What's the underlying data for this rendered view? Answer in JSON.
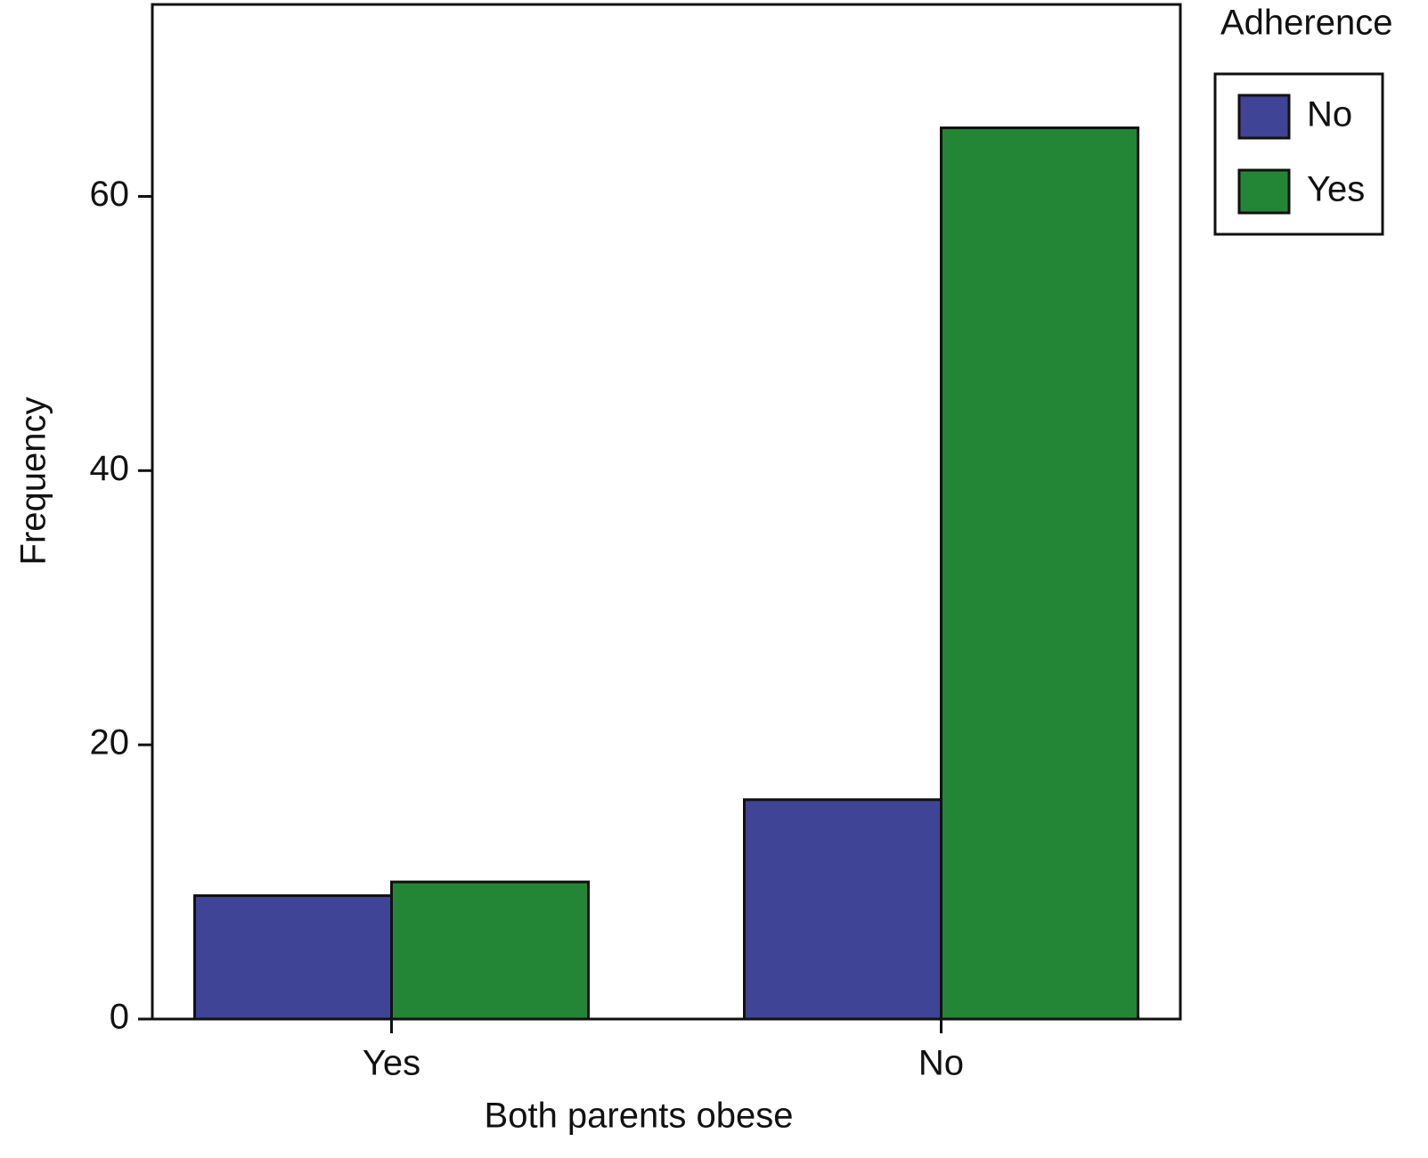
{
  "chart_data": {
    "type": "bar",
    "x_label": "Both parents obese",
    "y_label": "Frequency",
    "legend_title": "Adherence",
    "legend_position": "upper right outside",
    "categories": [
      "Yes",
      "No"
    ],
    "series": [
      {
        "name": "No",
        "color": "#404496",
        "values": [
          9,
          16
        ]
      },
      {
        "name": "Yes",
        "color": "#238636",
        "values": [
          10,
          65
        ]
      }
    ],
    "ylim": [
      0,
      74
    ],
    "yticks": [
      0,
      20,
      40,
      60
    ],
    "grid": false
  }
}
